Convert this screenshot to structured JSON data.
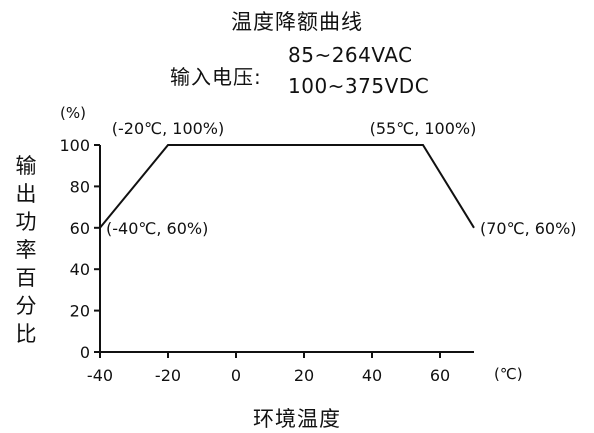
{
  "chart_data": {
    "type": "line",
    "title": "温度降额曲线",
    "input_label": "输入电压:",
    "input_specs": [
      "85~264VAC",
      "100~375VDC"
    ],
    "xlabel": "环境温度",
    "ylabel": "输出功率百分比",
    "x_unit": "(℃)",
    "y_unit": "(%)",
    "xlim": [
      -40,
      70
    ],
    "ylim": [
      0,
      100
    ],
    "x_ticks": [
      -40,
      -20,
      0,
      20,
      40,
      60
    ],
    "y_ticks": [
      0,
      20,
      40,
      60,
      80,
      100
    ],
    "grid": false,
    "series": [
      {
        "x": [
          -40,
          -20,
          55,
          70
        ],
        "y": [
          60,
          100,
          100,
          60
        ]
      }
    ],
    "annotations": [
      {
        "text": "(-40℃, 60%)",
        "x": -40,
        "y": 60,
        "anchor": "right"
      },
      {
        "text": "(-20℃, 100%)",
        "x": -20,
        "y": 100,
        "anchor": "above"
      },
      {
        "text": "(55℃, 100%)",
        "x": 55,
        "y": 100,
        "anchor": "above"
      },
      {
        "text": "(70℃, 60%)",
        "x": 70,
        "y": 60,
        "anchor": "right"
      }
    ],
    "line_color": "#111111"
  }
}
